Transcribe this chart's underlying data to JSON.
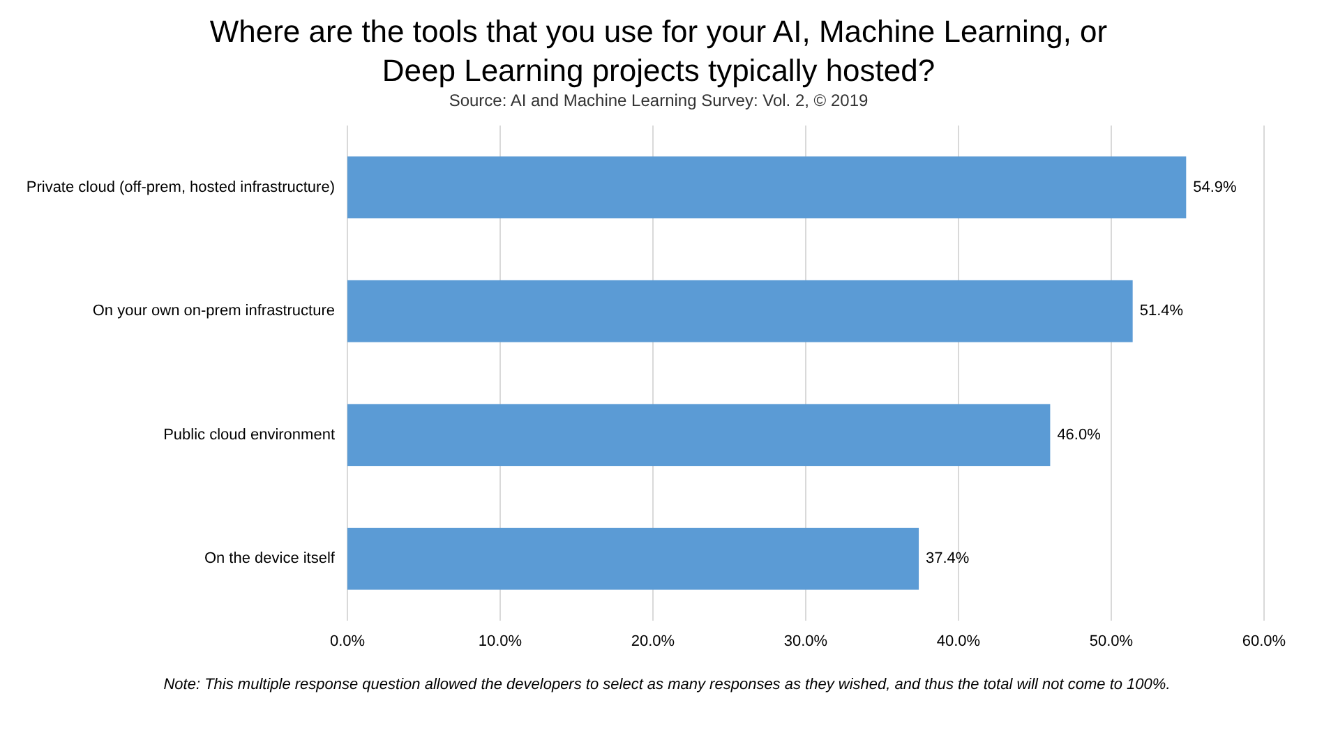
{
  "chart_data": {
    "type": "bar",
    "orientation": "horizontal",
    "title": "Where are the tools that you use for your AI, Machine Learning, or\nDeep Learning projects typically hosted?",
    "subtitle": "Source: AI and Machine Learning Survey: Vol. 2, © 2019",
    "categories": [
      "Private cloud (off-prem, hosted infrastructure)",
      "On your own on-prem infrastructure",
      "Public cloud environment",
      "On the device itself"
    ],
    "values": [
      54.9,
      51.4,
      46.0,
      37.4
    ],
    "color": "#5b9bd5",
    "value_labels": [
      "54.9%",
      "51.4%",
      "46.0%",
      "37.4%"
    ],
    "xlim": [
      0,
      60
    ],
    "xticks": [
      {
        "value": 0,
        "label": "0.0%"
      },
      {
        "value": 10,
        "label": "10.0%"
      },
      {
        "value": 20,
        "label": "20.0%"
      },
      {
        "value": 30,
        "label": "30.0%"
      },
      {
        "value": 40,
        "label": "40.0%"
      },
      {
        "value": 50,
        "label": "50.0%"
      },
      {
        "value": 60,
        "label": "60.0%"
      }
    ],
    "grid": "x",
    "annotations": [
      "Note: This multiple response question allowed the developers to select as many responses as they wished, and thus the total will not come to 100%."
    ]
  }
}
